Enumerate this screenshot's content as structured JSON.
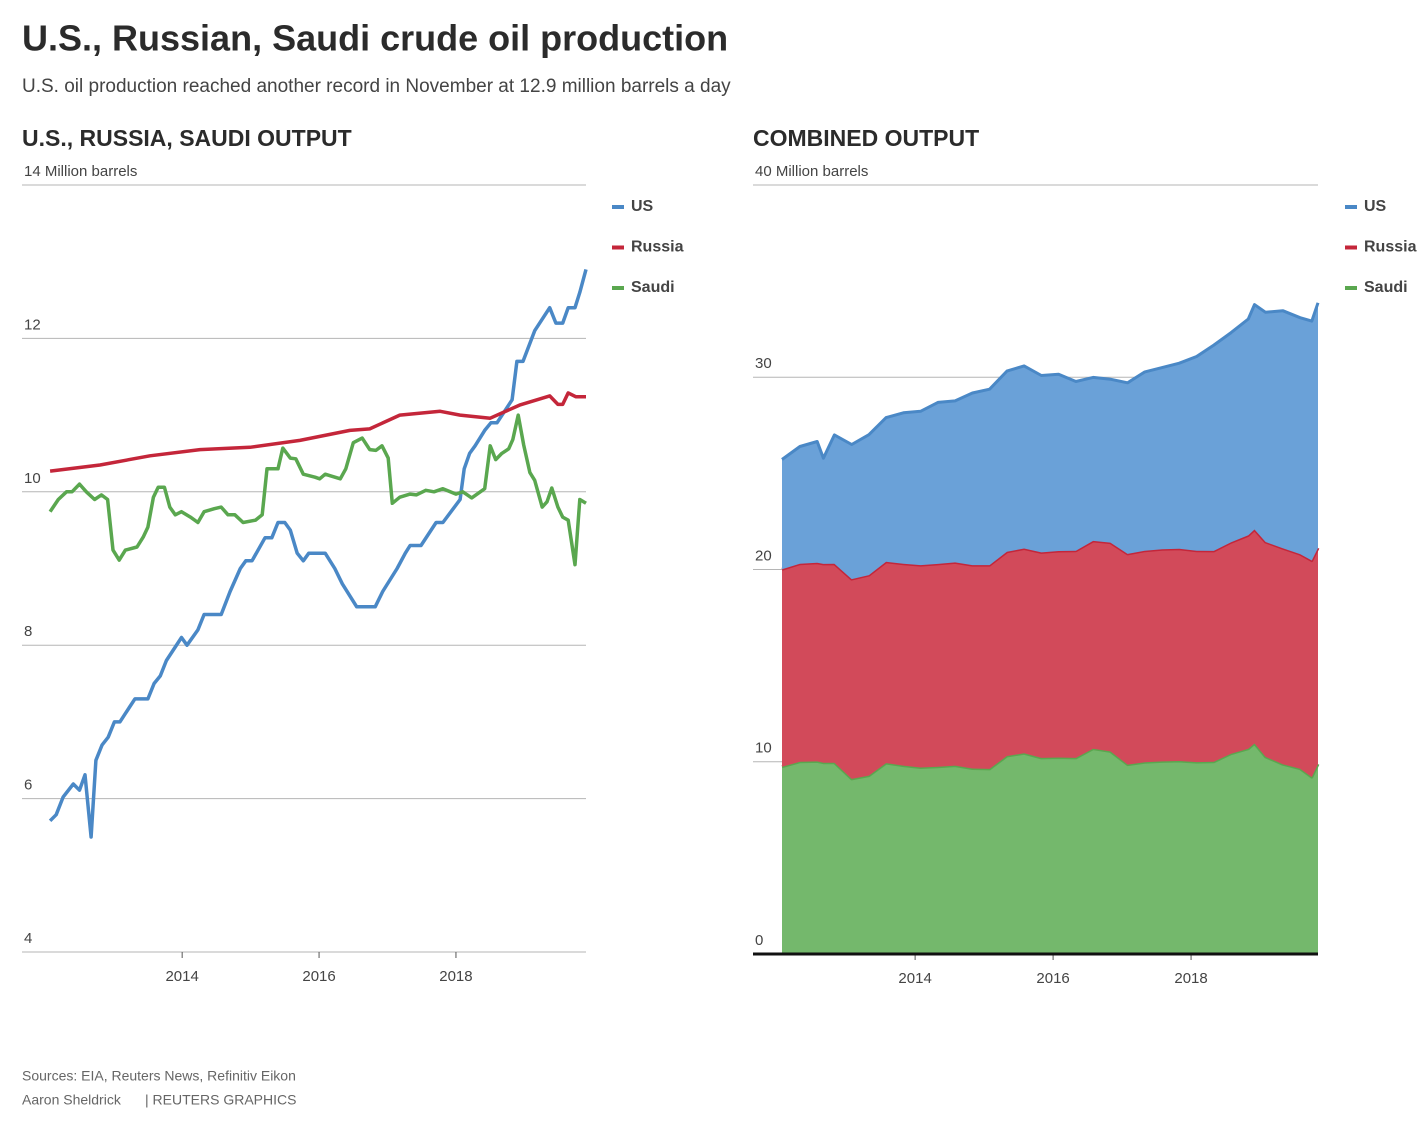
{
  "title": "U.S., Russian, Saudi crude oil production",
  "subtitle": "U.S. oil production reached another record in November at 12.9 million barrels a day",
  "chart_data": [
    {
      "type": "line",
      "title": "U.S., RUSSIA, SAUDI OUTPUT",
      "xlim": [
        2011.66,
        2019.9
      ],
      "xticks": [
        2014,
        2016,
        2018
      ],
      "ylim": [
        4,
        14
      ],
      "yticks": [
        4,
        6,
        8,
        10,
        12,
        {
          "value": 14,
          "label": "14 Million barrels"
        }
      ],
      "grid": true,
      "legend": "right",
      "series": [
        {
          "name": "US",
          "color": "#4a88c6",
          "x": [
            2012.07,
            2012.16,
            2012.26,
            2012.41,
            2012.5,
            2012.58,
            2012.67,
            2012.74,
            2012.83,
            2012.92,
            2013.01,
            2013.09,
            2013.31,
            2013.5,
            2013.59,
            2013.68,
            2013.77,
            2013.99,
            2014.07,
            2014.23,
            2014.32,
            2014.57,
            2014.7,
            2014.85,
            2014.93,
            2015.02,
            2015.21,
            2015.31,
            2015.4,
            2015.5,
            2015.58,
            2015.68,
            2015.77,
            2015.85,
            2016.09,
            2016.23,
            2016.34,
            2016.55,
            2016.82,
            2016.93,
            2017.14,
            2017.26,
            2017.33,
            2017.49,
            2017.71,
            2017.81,
            2018.06,
            2018.12,
            2018.2,
            2018.28,
            2018.42,
            2018.51,
            2018.6,
            2018.82,
            2018.89,
            2018.98,
            2019.15,
            2019.37,
            2019.46,
            2019.56,
            2019.64,
            2019.74,
            2019.81,
            2019.9
          ],
          "values": [
            5.71,
            5.79,
            6.02,
            6.19,
            6.11,
            6.31,
            5.5,
            6.5,
            6.7,
            6.8,
            7.0,
            7.0,
            7.3,
            7.3,
            7.5,
            7.6,
            7.8,
            8.1,
            8.0,
            8.2,
            8.4,
            8.4,
            8.7,
            9.0,
            9.1,
            9.1,
            9.4,
            9.4,
            9.6,
            9.6,
            9.5,
            9.2,
            9.1,
            9.2,
            9.2,
            9.0,
            8.8,
            8.5,
            8.5,
            8.7,
            9.0,
            9.2,
            9.3,
            9.3,
            9.6,
            9.6,
            9.9,
            10.3,
            10.5,
            10.6,
            10.8,
            10.9,
            10.9,
            11.2,
            11.7,
            11.7,
            12.1,
            12.4,
            12.2,
            12.2,
            12.4,
            12.4,
            12.6,
            12.9
          ]
        },
        {
          "name": "Russia",
          "color": "#c4263a",
          "x": [
            2012.07,
            2012.8,
            2013.53,
            2014.26,
            2014.99,
            2015.72,
            2016.45,
            2016.74,
            2017.18,
            2017.77,
            2018.06,
            2018.5,
            2018.93,
            2019.37,
            2019.49,
            2019.56,
            2019.64,
            2019.75,
            2019.9
          ],
          "values": [
            10.27,
            10.35,
            10.47,
            10.55,
            10.58,
            10.67,
            10.8,
            10.82,
            11.0,
            11.05,
            11.0,
            10.96,
            11.13,
            11.25,
            11.14,
            11.14,
            11.29,
            11.24,
            11.24
          ]
        },
        {
          "name": "Saudi",
          "color": "#5aa74f",
          "x": [
            2012.07,
            2012.19,
            2012.31,
            2012.39,
            2012.5,
            2012.6,
            2012.72,
            2012.82,
            2012.91,
            2012.99,
            2013.08,
            2013.17,
            2013.34,
            2013.43,
            2013.5,
            2013.58,
            2013.65,
            2013.74,
            2013.82,
            2013.9,
            2013.99,
            2014.12,
            2014.23,
            2014.32,
            2014.47,
            2014.57,
            2014.67,
            2014.77,
            2014.89,
            2015.07,
            2015.17,
            2015.24,
            2015.4,
            2015.47,
            2015.58,
            2015.66,
            2015.77,
            2015.94,
            2016.01,
            2016.09,
            2016.16,
            2016.31,
            2016.39,
            2016.5,
            2016.63,
            2016.74,
            2016.83,
            2016.92,
            2017.01,
            2017.07,
            2017.18,
            2017.33,
            2017.42,
            2017.56,
            2017.68,
            2017.81,
            2018.0,
            2018.1,
            2018.23,
            2018.42,
            2018.5,
            2018.58,
            2018.67,
            2018.77,
            2018.83,
            2018.91,
            2018.99,
            2019.08,
            2019.15,
            2019.26,
            2019.33,
            2019.4,
            2019.49,
            2019.56,
            2019.64,
            2019.74,
            2019.81,
            2019.9
          ],
          "values": [
            9.74,
            9.9,
            10.0,
            10.0,
            10.1,
            10.0,
            9.9,
            9.96,
            9.9,
            9.24,
            9.11,
            9.24,
            9.28,
            9.41,
            9.54,
            9.93,
            10.06,
            10.06,
            9.8,
            9.7,
            9.74,
            9.67,
            9.6,
            9.74,
            9.78,
            9.8,
            9.7,
            9.7,
            9.6,
            9.63,
            9.7,
            10.3,
            10.3,
            10.57,
            10.44,
            10.43,
            10.23,
            10.19,
            10.17,
            10.23,
            10.21,
            10.17,
            10.3,
            10.64,
            10.7,
            10.55,
            10.54,
            10.6,
            10.44,
            9.85,
            9.93,
            9.97,
            9.96,
            10.02,
            10.0,
            10.04,
            9.97,
            10.0,
            9.92,
            10.04,
            10.6,
            10.42,
            10.5,
            10.56,
            10.68,
            11.0,
            10.61,
            10.25,
            10.15,
            9.8,
            9.87,
            10.05,
            9.8,
            9.67,
            9.63,
            9.05,
            9.9,
            9.85
          ]
        }
      ]
    },
    {
      "type": "stacked_area",
      "title": "COMBINED OUTPUT",
      "xlim": [
        2011.65,
        2019.84
      ],
      "xticks": [
        2014,
        2016,
        2018
      ],
      "ylim": [
        0,
        40
      ],
      "yticks": [
        0,
        10,
        20,
        30,
        {
          "value": 40,
          "label": "40 Million barrels"
        }
      ],
      "grid": true,
      "legend": "right",
      "x": [
        2012.07,
        2012.33,
        2012.58,
        2012.67,
        2012.83,
        2013.08,
        2013.33,
        2013.58,
        2013.83,
        2014.08,
        2014.33,
        2014.58,
        2014.83,
        2015.08,
        2015.33,
        2015.58,
        2015.83,
        2016.08,
        2016.33,
        2016.58,
        2016.83,
        2017.08,
        2017.33,
        2017.58,
        2017.83,
        2018.08,
        2018.33,
        2018.58,
        2018.83,
        2018.92,
        2019.08,
        2019.33,
        2019.58,
        2019.75,
        2019.84
      ],
      "series": [
        {
          "name": "US",
          "color": "#4a88c6",
          "fill": "#6aa1d8",
          "values": [
            5.71,
            6.1,
            6.31,
            5.5,
            6.7,
            7.0,
            7.3,
            7.5,
            7.85,
            8.0,
            8.4,
            8.4,
            8.95,
            9.15,
            9.4,
            9.5,
            9.2,
            9.2,
            8.8,
            8.5,
            8.5,
            8.9,
            9.3,
            9.45,
            9.65,
            10.1,
            10.7,
            10.9,
            11.25,
            11.7,
            11.95,
            12.35,
            12.3,
            12.45,
            12.75
          ]
        },
        {
          "name": "Russia",
          "color": "#c4263a",
          "fill": "#d24a5a",
          "values": [
            10.27,
            10.3,
            10.33,
            10.34,
            10.35,
            10.39,
            10.43,
            10.47,
            10.5,
            10.53,
            10.55,
            10.57,
            10.58,
            10.6,
            10.62,
            10.65,
            10.69,
            10.74,
            10.78,
            10.81,
            10.86,
            10.96,
            11.01,
            11.03,
            11.04,
            11.0,
            10.97,
            11.0,
            11.1,
            11.13,
            11.18,
            11.24,
            11.16,
            11.27,
            11.24
          ]
        },
        {
          "name": "Saudi",
          "color": "#5aa74f",
          "fill": "#74b86c",
          "values": [
            9.74,
            10.0,
            10.02,
            9.95,
            9.95,
            9.11,
            9.28,
            9.93,
            9.8,
            9.7,
            9.74,
            9.8,
            9.65,
            9.63,
            10.3,
            10.44,
            10.2,
            10.22,
            10.2,
            10.68,
            10.54,
            9.85,
            9.97,
            10.02,
            10.04,
            9.98,
            10.0,
            10.42,
            10.68,
            10.95,
            10.25,
            9.87,
            9.64,
            9.2,
            9.88
          ]
        }
      ]
    }
  ],
  "footer": {
    "source": "Sources: EIA, Reuters News, Refinitiv Eikon",
    "byline": "Aaron Sheldrick",
    "credit": "| REUTERS GRAPHICS"
  }
}
